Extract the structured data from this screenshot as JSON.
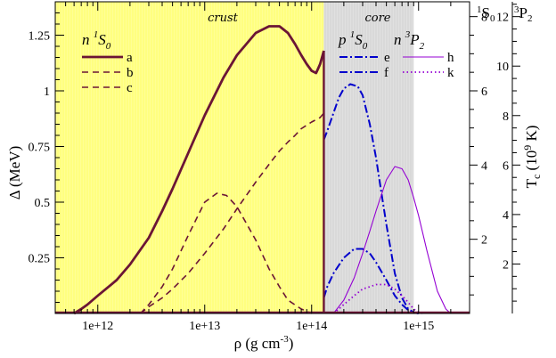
{
  "chart_data": {
    "type": "line",
    "xscale": "log",
    "xlim": [
      400000000000.0,
      3000000000000000.0
    ],
    "ylim": [
      0,
      1.4
    ],
    "xlabel": "ρ (g cm",
    "xlabel_sup": "-3",
    "xlabel_end": ")",
    "ylabel": "Δ (MeV)",
    "x_ticks": [
      {
        "value": 1000000000000.0,
        "label": "1e+12"
      },
      {
        "value": 10000000000000.0,
        "label": "1e+13"
      },
      {
        "value": 100000000000000.0,
        "label": "1e+14"
      },
      {
        "value": 1000000000000000.0,
        "label": "1e+15"
      }
    ],
    "y_ticks": [
      {
        "value": 0.25,
        "label": "0.25"
      },
      {
        "value": 0.5,
        "label": "0.5"
      },
      {
        "value": 0.75,
        "label": "0.75"
      },
      {
        "value": 1.0,
        "label": "1"
      },
      {
        "value": 1.25,
        "label": "1.25"
      }
    ],
    "right_axes": {
      "s0": {
        "header": "S",
        "header_sub": "0",
        "header_sup": "1",
        "ticks": [
          2,
          4,
          6,
          8
        ],
        "per_delta": 6.0
      },
      "p2": {
        "header": "P",
        "header_sub": "2",
        "header_sup": "3",
        "ticks": [
          2,
          4,
          6,
          8,
          10,
          12
        ],
        "per_delta": 9.0
      },
      "label": "T",
      "label_sub": "c",
      "label_mid": " (10",
      "label_sup": "9",
      "label_end": " K)"
    },
    "regions": [
      {
        "label": "crust",
        "x_range": [
          400000000000.0,
          130000000000000.0
        ],
        "color": "#ffff80"
      },
      {
        "label": "core",
        "x_range": [
          130000000000000.0,
          900000000000000.0
        ],
        "color": "#d9d9d9"
      }
    ],
    "group_labels": [
      {
        "base": "n ",
        "sup": "1",
        "main": "S",
        "sub": "0"
      },
      {
        "base": "p ",
        "sup": "1",
        "main": "S",
        "sub": "0"
      },
      {
        "base": "n ",
        "sup": "3",
        "main": "P",
        "sub": "2"
      }
    ],
    "series": [
      {
        "name": "a",
        "style": "solid-thick",
        "color": "#6b1535",
        "x": [
          600000000000.0,
          700000000000.0,
          800000000000.0,
          1000000000000.0,
          1500000000000.0,
          2000000000000.0,
          3000000000000.0,
          4000000000000.0,
          5000000000000.0,
          7000000000000.0,
          10000000000000.0,
          15000000000000.0,
          20000000000000.0,
          30000000000000.0,
          40000000000000.0,
          50000000000000.0,
          60000000000000.0,
          70000000000000.0,
          80000000000000.0,
          90000000000000.0,
          100000000000000.0,
          110000000000000.0,
          115000000000000.0,
          120000000000000.0,
          125000000000000.0,
          130000000000000.0
        ],
        "y": [
          0.0,
          0.02,
          0.04,
          0.08,
          0.15,
          0.22,
          0.34,
          0.46,
          0.56,
          0.72,
          0.89,
          1.06,
          1.16,
          1.26,
          1.29,
          1.29,
          1.26,
          1.21,
          1.16,
          1.12,
          1.09,
          1.08,
          1.1,
          1.12,
          1.15,
          1.18
        ]
      },
      {
        "name": "b",
        "style": "dashed",
        "color": "#6b1535",
        "x": [
          2500000000000.0,
          3000000000000.0,
          4000000000000.0,
          5000000000000.0,
          7000000000000.0,
          10000000000000.0,
          13000000000000.0,
          16000000000000.0,
          20000000000000.0,
          30000000000000.0,
          40000000000000.0,
          50000000000000.0,
          60000000000000.0,
          80000000000000.0,
          100000000000000.0
        ],
        "y": [
          0.0,
          0.04,
          0.12,
          0.2,
          0.35,
          0.5,
          0.54,
          0.53,
          0.48,
          0.33,
          0.2,
          0.12,
          0.06,
          0.02,
          0.0
        ]
      },
      {
        "name": "c",
        "style": "dashed",
        "color": "#6b1535",
        "x": [
          2500000000000.0,
          3000000000000.0,
          4000000000000.0,
          5000000000000.0,
          7000000000000.0,
          10000000000000.0,
          15000000000000.0,
          20000000000000.0,
          30000000000000.0,
          40000000000000.0,
          50000000000000.0,
          60000000000000.0,
          70000000000000.0,
          80000000000000.0,
          100000000000000.0,
          120000000000000.0,
          130000000000000.0
        ],
        "y": [
          0.0,
          0.03,
          0.07,
          0.11,
          0.18,
          0.27,
          0.38,
          0.47,
          0.59,
          0.67,
          0.73,
          0.77,
          0.8,
          0.83,
          0.86,
          0.88,
          0.9
        ]
      },
      {
        "name": "e",
        "style": "dashdot",
        "color": "#0000cc",
        "x": [
          130000000000000.0,
          140000000000000.0,
          160000000000000.0,
          180000000000000.0,
          200000000000000.0,
          230000000000000.0,
          270000000000000.0,
          300000000000000.0,
          350000000000000.0,
          400000000000000.0,
          450000000000000.0,
          500000000000000.0,
          600000000000000.0,
          700000000000000.0,
          800000000000000.0,
          900000000000000.0,
          1000000000000000.0
        ],
        "y": [
          0.78,
          0.82,
          0.9,
          0.97,
          1.01,
          1.03,
          1.02,
          0.98,
          0.85,
          0.7,
          0.54,
          0.4,
          0.18,
          0.07,
          0.02,
          0.005,
          0.0
        ]
      },
      {
        "name": "f",
        "style": "dashdot",
        "color": "#0000cc",
        "x": [
          130000000000000.0,
          140000000000000.0,
          160000000000000.0,
          200000000000000.0,
          250000000000000.0,
          300000000000000.0,
          350000000000000.0,
          400000000000000.0,
          500000000000000.0,
          600000000000000.0,
          700000000000000.0,
          800000000000000.0,
          900000000000000.0,
          1000000000000000.0
        ],
        "y": [
          0.07,
          0.12,
          0.18,
          0.25,
          0.29,
          0.29,
          0.27,
          0.23,
          0.15,
          0.08,
          0.04,
          0.015,
          0.005,
          0.0
        ]
      },
      {
        "name": "h",
        "style": "solid",
        "color": "#9400d3",
        "x": [
          160000000000000.0,
          200000000000000.0,
          250000000000000.0,
          300000000000000.0,
          350000000000000.0,
          400000000000000.0,
          500000000000000.0,
          600000000000000.0,
          700000000000000.0,
          800000000000000.0,
          900000000000000.0,
          1000000000000000.0,
          1200000000000000.0,
          1500000000000000.0,
          1800000000000000.0,
          2000000000000000.0
        ],
        "y": [
          0.0,
          0.06,
          0.16,
          0.27,
          0.37,
          0.46,
          0.6,
          0.66,
          0.65,
          0.6,
          0.52,
          0.44,
          0.28,
          0.1,
          0.02,
          0.0
        ]
      },
      {
        "name": "k",
        "style": "dotted",
        "color": "#9400d3",
        "x": [
          160000000000000.0,
          200000000000000.0,
          250000000000000.0,
          300000000000000.0,
          350000000000000.0,
          400000000000000.0,
          500000000000000.0,
          600000000000000.0,
          700000000000000.0,
          800000000000000.0,
          900000000000000.0,
          1000000000000000.0,
          1100000000000000.0
        ],
        "y": [
          0.0,
          0.04,
          0.08,
          0.11,
          0.12,
          0.13,
          0.13,
          0.11,
          0.08,
          0.05,
          0.02,
          0.005,
          0.0
        ]
      }
    ]
  }
}
